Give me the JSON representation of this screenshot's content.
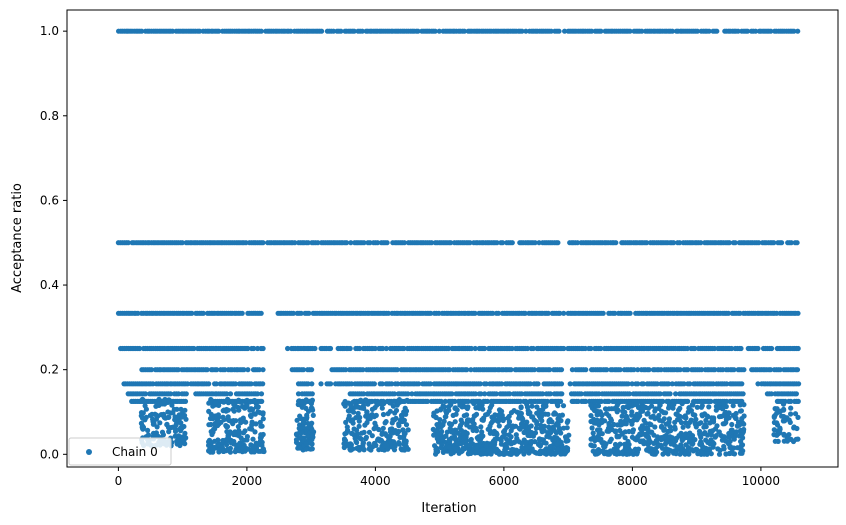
{
  "chart_data": {
    "type": "scatter",
    "title": "",
    "xlabel": "Iteration",
    "ylabel": "Acceptance ratio",
    "xlim": [
      -800,
      11200
    ],
    "ylim": [
      -0.03,
      1.05
    ],
    "xticks": [
      0,
      2000,
      4000,
      6000,
      8000,
      10000
    ],
    "xtick_labels": [
      "0",
      "2000",
      "4000",
      "6000",
      "8000",
      "10000"
    ],
    "yticks": [
      0.0,
      0.2,
      0.4,
      0.6,
      0.8,
      1.0
    ],
    "ytick_labels": [
      "0.0",
      "0.2",
      "0.4",
      "0.6",
      "0.8",
      "1.0"
    ],
    "grid": false,
    "legend_position": "lower-left",
    "series": [
      {
        "name": "Chain 0",
        "color": "#1f77b4",
        "marker": "circle",
        "bands": [
          {
            "y": 1.0,
            "segments": [
              [
                0,
                2260
              ],
              [
                2290,
                6940
              ],
              [
                7000,
                10580
              ]
            ]
          },
          {
            "y": 0.5,
            "segments": [
              [
                0,
                2250
              ],
              [
                2320,
                5900
              ],
              [
                5950,
                6150
              ],
              [
                6240,
                6850
              ],
              [
                7020,
                10580
              ]
            ]
          },
          {
            "y": 0.3333,
            "segments": [
              [
                0,
                2240
              ],
              [
                2480,
                2960
              ],
              [
                3030,
                6940
              ],
              [
                7000,
                10580
              ]
            ]
          },
          {
            "y": 0.25,
            "segments": [
              [
                30,
                2250
              ],
              [
                2630,
                3050
              ],
              [
                3150,
                3320
              ],
              [
                3420,
                6940
              ],
              [
                6990,
                9730
              ],
              [
                9800,
                10580
              ]
            ]
          },
          {
            "y": 0.2,
            "segments": [
              [
                300,
                2250
              ],
              [
                2700,
                3020
              ],
              [
                3320,
                6900
              ],
              [
                7060,
                9730
              ],
              [
                9850,
                10580
              ]
            ]
          },
          {
            "y": 0.1667,
            "segments": [
              [
                80,
                2240
              ],
              [
                2800,
                3030
              ],
              [
                3150,
                3320
              ],
              [
                3380,
                6900
              ],
              [
                7030,
                9720
              ],
              [
                9950,
                10580
              ]
            ]
          },
          {
            "y": 0.1429,
            "segments": [
              [
                150,
                1050
              ],
              [
                1200,
                2230
              ],
              [
                2800,
                3030
              ],
              [
                3600,
                6900
              ],
              [
                7050,
                9730
              ],
              [
                10100,
                10580
              ]
            ]
          },
          {
            "y": 0.125,
            "segments": [
              [
                200,
                1050
              ],
              [
                1450,
                2240
              ],
              [
                2800,
                3030
              ],
              [
                3700,
                6900
              ],
              [
                7060,
                9720
              ],
              [
                10250,
                10580
              ]
            ]
          }
        ],
        "clusters": [
          {
            "x": [
              350,
              1060
            ],
            "y": [
              0.02,
              0.13
            ],
            "n": 140
          },
          {
            "x": [
              1400,
              2270
            ],
            "y": [
              0.005,
              0.13
            ],
            "n": 230
          },
          {
            "x": [
              2770,
              3040
            ],
            "y": [
              0.01,
              0.13
            ],
            "n": 90
          },
          {
            "x": [
              3500,
              4520
            ],
            "y": [
              0.01,
              0.13
            ],
            "n": 220
          },
          {
            "x": [
              4900,
              7020
            ],
            "y": [
              0.0,
              0.12
            ],
            "n": 560
          },
          {
            "x": [
              7350,
              9740
            ],
            "y": [
              0.0,
              0.12
            ],
            "n": 560
          },
          {
            "x": [
              10200,
              10580
            ],
            "y": [
              0.03,
              0.12
            ],
            "n": 50
          }
        ]
      }
    ]
  }
}
